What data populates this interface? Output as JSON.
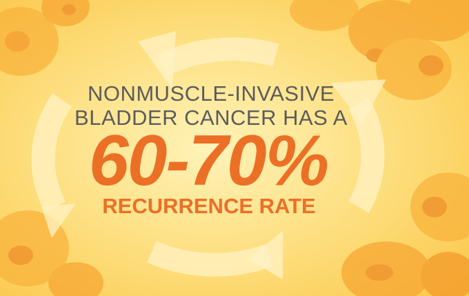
{
  "headline": {
    "line1": "NONMUSCLE-INVASIVE",
    "line2": "BLADDER CANCER HAS A"
  },
  "statistic": "60-70%",
  "caption": "RECURRENCE RATE"
}
